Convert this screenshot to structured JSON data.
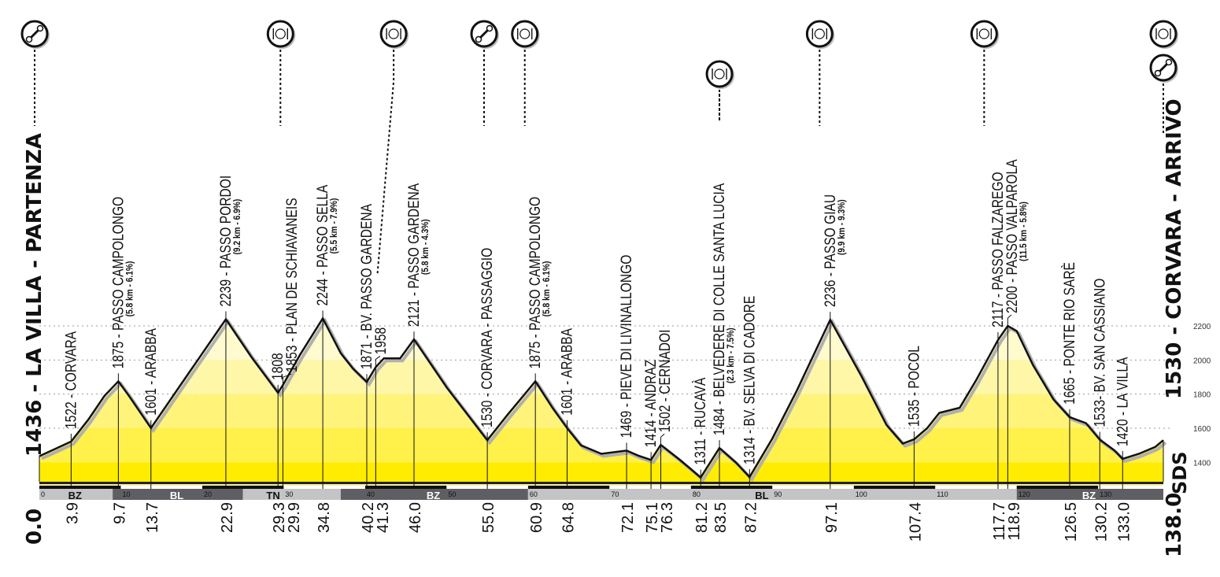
{
  "chart_data": {
    "type": "area",
    "title": "",
    "xlabel": "",
    "ylabel": "",
    "xlim": [
      0,
      138
    ],
    "ylim": [
      1270,
      2300
    ],
    "grid": "horizontal dotted",
    "y_ticks": [
      1400,
      1600,
      1800,
      2000,
      2200
    ],
    "x_ticks": [
      0,
      10,
      20,
      30,
      40,
      50,
      60,
      70,
      80,
      90,
      100,
      110,
      120,
      130
    ],
    "profile": [
      [
        0,
        1436
      ],
      [
        2,
        1480
      ],
      [
        3.9,
        1522
      ],
      [
        6,
        1650
      ],
      [
        8,
        1790
      ],
      [
        9.7,
        1875
      ],
      [
        11,
        1790
      ],
      [
        13.7,
        1601
      ],
      [
        18,
        1900
      ],
      [
        22.9,
        2239
      ],
      [
        26,
        2020
      ],
      [
        29.3,
        1808
      ],
      [
        29.9,
        1853
      ],
      [
        32,
        2030
      ],
      [
        34.8,
        2244
      ],
      [
        37,
        2040
      ],
      [
        38.5,
        1950
      ],
      [
        40.2,
        1871
      ],
      [
        41.3,
        1958
      ],
      [
        42.3,
        2010
      ],
      [
        44.3,
        2010
      ],
      [
        46.0,
        2121
      ],
      [
        50,
        1840
      ],
      [
        55.0,
        1530
      ],
      [
        57.5,
        1680
      ],
      [
        60.9,
        1875
      ],
      [
        63,
        1720
      ],
      [
        64.8,
        1601
      ],
      [
        66.5,
        1500
      ],
      [
        69,
        1450
      ],
      [
        72.1,
        1469
      ],
      [
        73.5,
        1440
      ],
      [
        75.1,
        1414
      ],
      [
        76.3,
        1502
      ],
      [
        78.5,
        1420
      ],
      [
        80,
        1360
      ],
      [
        81.2,
        1311
      ],
      [
        83.5,
        1484
      ],
      [
        85.5,
        1400
      ],
      [
        87.2,
        1314
      ],
      [
        90,
        1540
      ],
      [
        93,
        1820
      ],
      [
        97.1,
        2236
      ],
      [
        101,
        1900
      ],
      [
        104,
        1620
      ],
      [
        106,
        1510
      ],
      [
        107.4,
        1535
      ],
      [
        109,
        1600
      ],
      [
        110.5,
        1690
      ],
      [
        113,
        1720
      ],
      [
        115,
        1880
      ],
      [
        117.7,
        2117
      ],
      [
        118.9,
        2200
      ],
      [
        120,
        2170
      ],
      [
        122,
        1970
      ],
      [
        124.5,
        1770
      ],
      [
        126.5,
        1665
      ],
      [
        128.5,
        1630
      ],
      [
        130.2,
        1533
      ],
      [
        132,
        1470
      ],
      [
        133.0,
        1420
      ],
      [
        135,
        1450
      ],
      [
        137,
        1490
      ],
      [
        138,
        1530
      ]
    ],
    "waypoints": [
      {
        "km": 3.9,
        "km_label": "3.9",
        "alt": 1522,
        "label": "1522 - CORVARA"
      },
      {
        "km": 9.7,
        "km_label": "9.7",
        "alt": 1875,
        "label": "1875 - PASSO CAMPOLONGO",
        "grade": "(5.8 km - 6.1%)"
      },
      {
        "km": 13.7,
        "km_label": "13.7",
        "alt": 1601,
        "label": "1601 - ARABBA"
      },
      {
        "km": 22.9,
        "km_label": "22.9",
        "alt": 2239,
        "label": "2239 - PASSO PORDOI",
        "grade": "(9.2 km - 6.9%)"
      },
      {
        "km": 29.3,
        "km_label": "29.3",
        "alt": 1808,
        "label": "1808"
      },
      {
        "km": 29.9,
        "km_label": "29.9",
        "alt": 1853,
        "label": "1853 - PLAN DE SCHIAVANEIS"
      },
      {
        "km": 34.8,
        "km_label": "34.8",
        "alt": 2244,
        "label": "2244 - PASSO SELLA",
        "grade": "(5.5 km - 7.9%)"
      },
      {
        "km": 40.2,
        "km_label": "40.2",
        "alt": 1871,
        "label": "1871 - BV. PASSO GARDENA"
      },
      {
        "km": 41.3,
        "km_label": "41.3",
        "alt": 1958,
        "label": "1958"
      },
      {
        "km": 46.0,
        "km_label": "46.0",
        "alt": 2121,
        "label": "2121 - PASSO GARDENA",
        "grade": "(5.8 km - 4.3%)"
      },
      {
        "km": 55.0,
        "km_label": "55.0",
        "alt": 1530,
        "label": "1530 - CORVARA - PASSAGGIO"
      },
      {
        "km": 60.9,
        "km_label": "60.9",
        "alt": 1875,
        "label": "1875 - PASSO CAMPOLONGO",
        "grade": "(5.8 km - 6.1%)"
      },
      {
        "km": 64.8,
        "km_label": "64.8",
        "alt": 1601,
        "label": "1601 - ARABBA"
      },
      {
        "km": 72.1,
        "km_label": "72.1",
        "alt": 1469,
        "label": "1469 - PIEVE DI LIVINALLONGO"
      },
      {
        "km": 75.1,
        "km_label": "75.1",
        "alt": 1414,
        "label": "1414 - ANDRAZ"
      },
      {
        "km": 76.3,
        "km_label": "76.3",
        "alt": 1502,
        "label": "1502 - CERNADOI"
      },
      {
        "km": 81.2,
        "km_label": "81.2",
        "alt": 1311,
        "label": "1311 - RUCAVÀ"
      },
      {
        "km": 83.5,
        "km_label": "83.5",
        "alt": 1484,
        "label": "1484 - BELVEDERE DI COLLE SANTA LUCIA",
        "grade": "(2.3 km - 7.5%)"
      },
      {
        "km": 87.2,
        "km_label": "87.2",
        "alt": 1314,
        "label": "1314 - BV. SELVA DI CADORE"
      },
      {
        "km": 97.1,
        "km_label": "97.1",
        "alt": 2236,
        "label": "2236 - PASSO GIAU",
        "grade": "(9.9 km - 9.3%)"
      },
      {
        "km": 107.4,
        "km_label": "107.4",
        "alt": 1535,
        "label": "1535 - POCOL"
      },
      {
        "km": 117.7,
        "km_label": "117.7",
        "alt": 2117,
        "label": "2117 - PASSO FALZAREGO"
      },
      {
        "km": 118.9,
        "km_label": "118.9",
        "alt": 2200,
        "label": "2200 - PASSO VALPAROLA",
        "grade": "(11.5 km - 5.8%)"
      },
      {
        "km": 126.5,
        "km_label": "126.5",
        "alt": 1665,
        "label": "1665 - PONTE RIO SARÈ"
      },
      {
        "km": 130.2,
        "km_label": "130.2",
        "alt": 1533,
        "label": "1533- BV. SAN CASSIANO"
      },
      {
        "km": 133.0,
        "km_label": "133.0",
        "alt": 1420,
        "label": "1420 - LA VILLA"
      }
    ],
    "start": {
      "km_label": "0.0",
      "label": "1436 - LA VILLA - PARTENZA"
    },
    "finish": {
      "km_label": "138.0",
      "label": "1530 - CORVARA - ARRIVO"
    },
    "provinces": [
      {
        "name": "BZ",
        "from": 0,
        "to": 9,
        "shade": "light"
      },
      {
        "name": "BL",
        "from": 9,
        "to": 25,
        "shade": "dark"
      },
      {
        "name": "TN",
        "from": 25,
        "to": 37,
        "shade": "light"
      },
      {
        "name": "BZ",
        "from": 37,
        "to": 60,
        "shade": "dark"
      },
      {
        "name": "BL",
        "from": 60,
        "to": 120,
        "shade": "light"
      },
      {
        "name": "BZ",
        "from": 120,
        "to": 138,
        "shade": "dark"
      }
    ],
    "service_icons": [
      {
        "type": "wrench-icon",
        "km": 0
      },
      {
        "type": "food-icon",
        "km": 29.6
      },
      {
        "type": "food-icon",
        "km": 43.5
      },
      {
        "type": "wrench-icon",
        "km": 54.6
      },
      {
        "type": "food-icon",
        "km": 59.6
      },
      {
        "type": "food-icon",
        "km": 83.5,
        "low": true
      },
      {
        "type": "food-icon",
        "km": 95.8
      },
      {
        "type": "food-icon",
        "km": 116
      },
      {
        "type": "food-icon",
        "km": 138
      },
      {
        "type": "wrench-icon",
        "km": 138,
        "low": true
      }
    ],
    "colors": {
      "fill": "#ffec00",
      "line": "#111111",
      "shadow": "#b0b0b0",
      "strip_light": "#c3c4c6",
      "strip_dark": "#5f5f63"
    }
  },
  "logo": "SDS"
}
